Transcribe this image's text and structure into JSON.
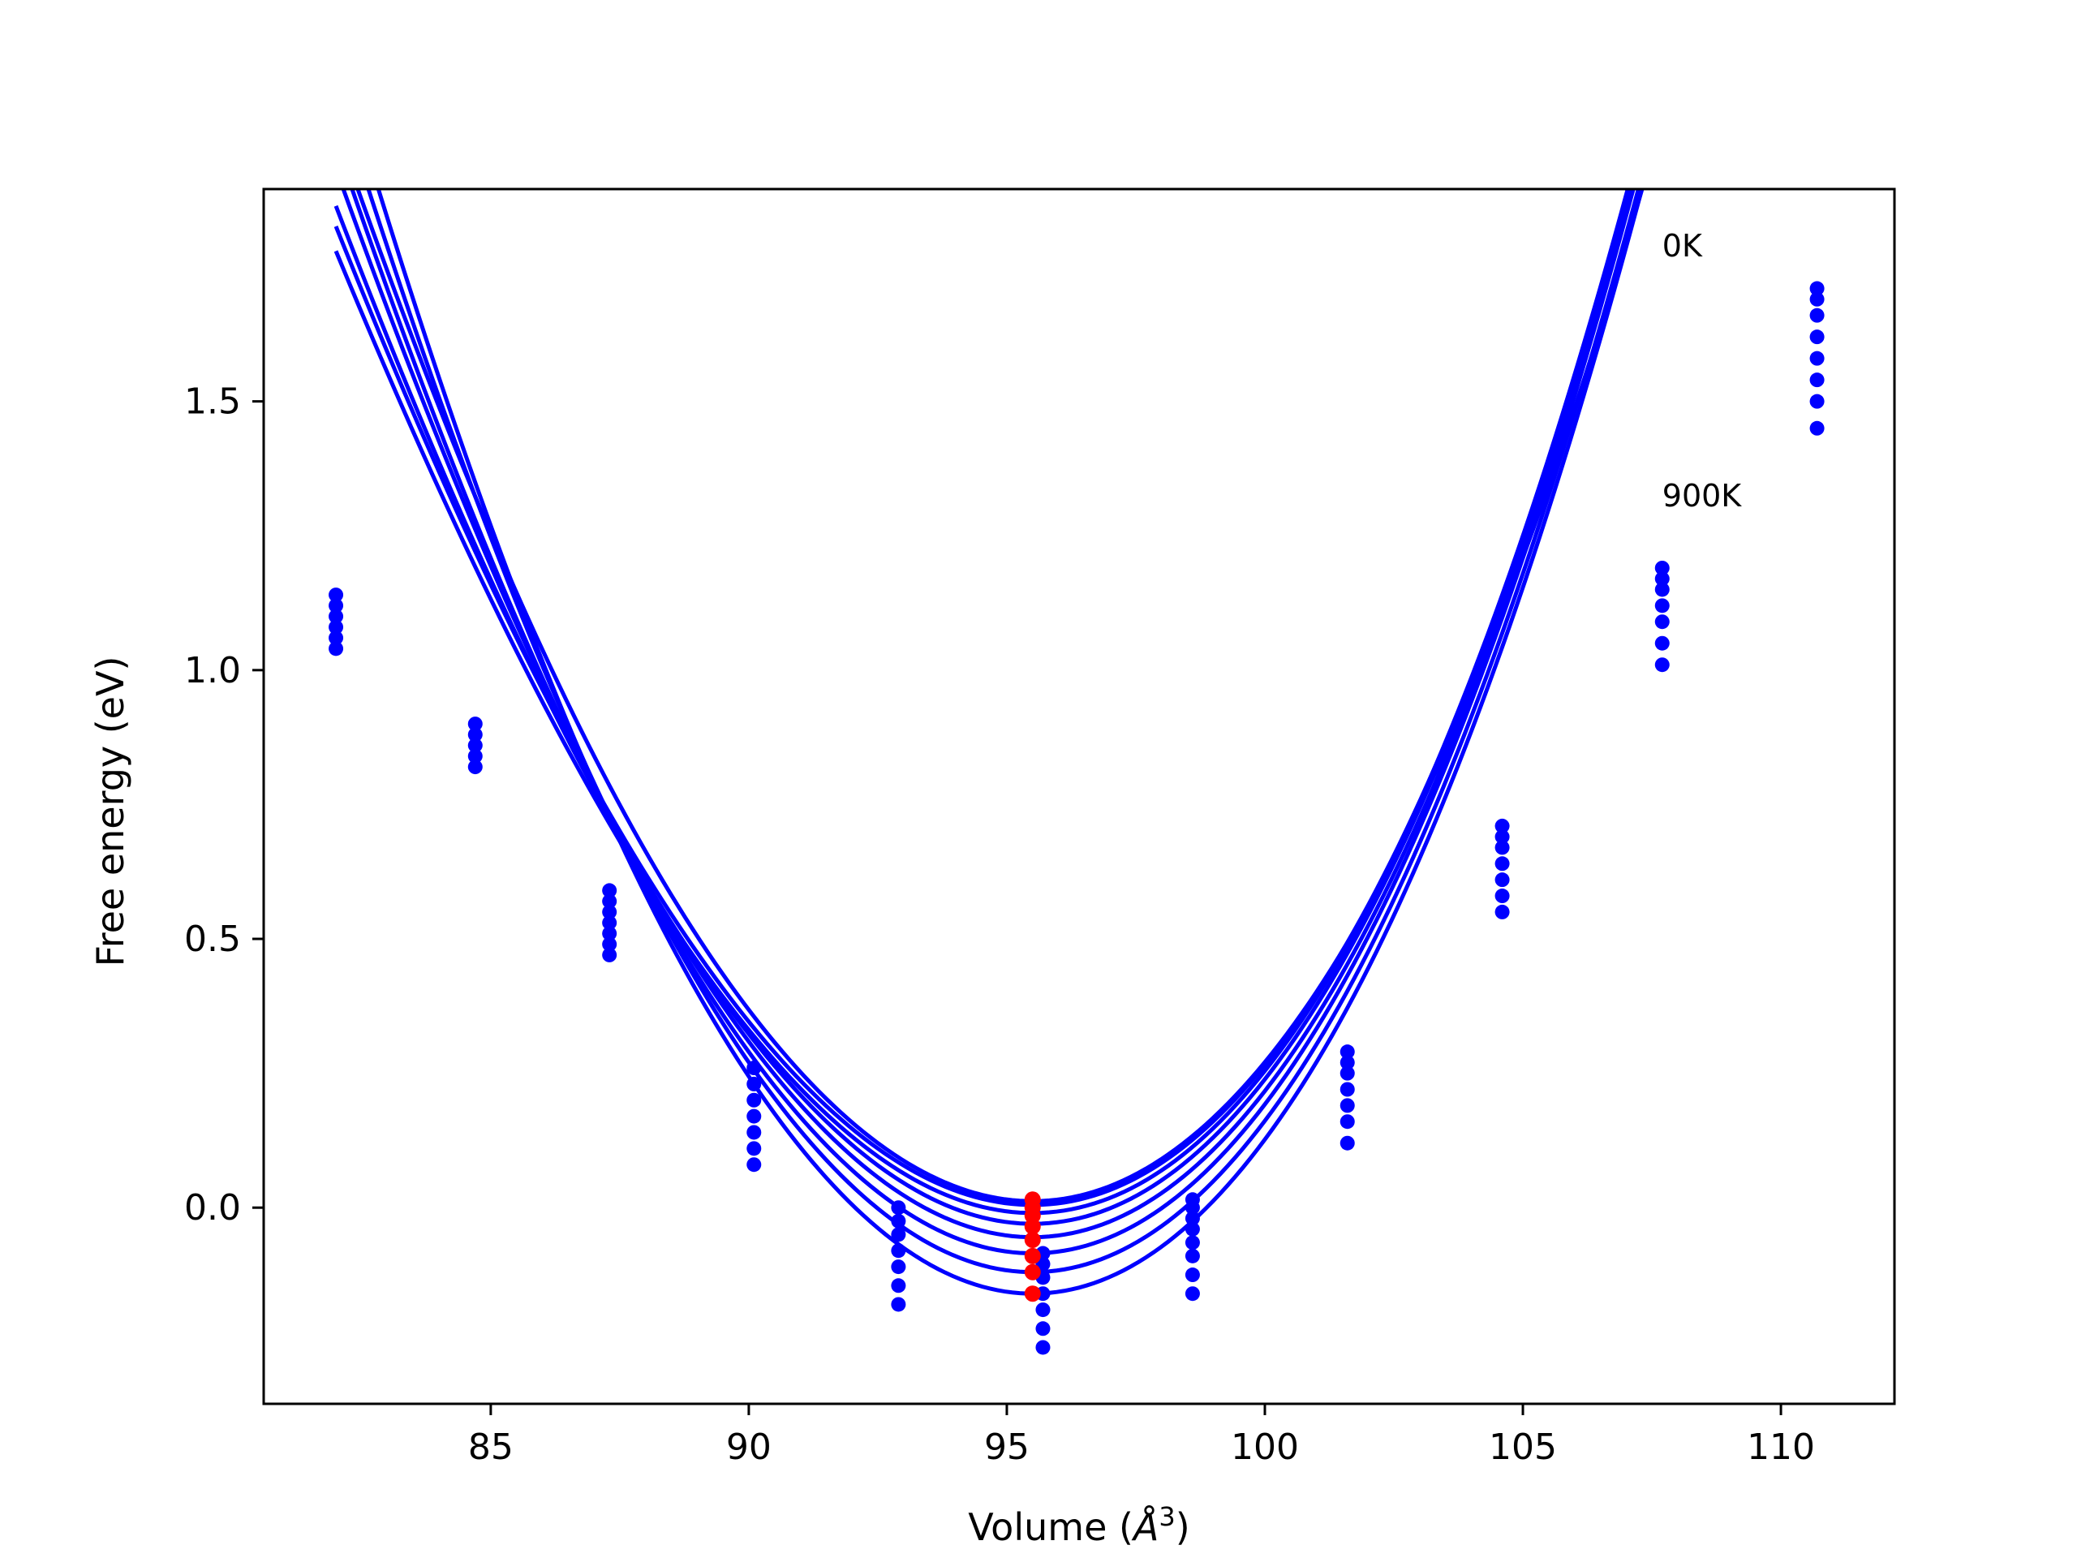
{
  "chart_data": {
    "type": "scatter",
    "title": "",
    "xlabel": "Volume (",
    "xlabel_symbol": "Å",
    "xlabel_power": "3",
    "xlabel_close": ")",
    "ylabel": "Free energy (eV)",
    "xlim": [
      80.6,
      112.2
    ],
    "ylim": [
      -0.365,
      1.895
    ],
    "xticks": [
      {
        "value": 85,
        "label": "85"
      },
      {
        "value": 90,
        "label": "90"
      },
      {
        "value": 95,
        "label": "95"
      },
      {
        "value": 100,
        "label": "100"
      },
      {
        "value": 105,
        "label": "105"
      },
      {
        "value": 110,
        "label": "110"
      }
    ],
    "yticks": [
      {
        "value": 0.0,
        "label": "0.0"
      },
      {
        "value": 0.5,
        "label": "0.5"
      },
      {
        "value": 1.0,
        "label": "1.0"
      },
      {
        "value": 1.5,
        "label": "1.5"
      }
    ],
    "grid": false,
    "legend": "none",
    "annotations": [
      {
        "text": "0K",
        "x": 107.7,
        "y": 1.77
      },
      {
        "text": "900K",
        "x": 107.7,
        "y": 1.305
      }
    ],
    "colors": {
      "series": "#0000ff",
      "minimum": "#ff0000",
      "axes": "#000000"
    },
    "fit_curves": [
      {
        "v0": 95.5,
        "e0": 0.012,
        "a": 0.01232,
        "b": 0.0001,
        "vmin": 82.0,
        "vmax": 110.8
      },
      {
        "v0": 95.5,
        "e0": 0.005,
        "a": 0.01215,
        "b": 0.00016,
        "vmin": 82.0,
        "vmax": 110.8
      },
      {
        "v0": 95.5,
        "e0": -0.01,
        "a": 0.01225,
        "b": 0.00018,
        "vmin": 82.0,
        "vmax": 110.8
      },
      {
        "v0": 95.5,
        "e0": -0.03,
        "a": 0.01255,
        "b": 0.00016,
        "vmin": 82.0,
        "vmax": 110.8
      },
      {
        "v0": 95.5,
        "e0": -0.055,
        "a": 0.0128,
        "b": 0.00014,
        "vmin": 82.0,
        "vmax": 110.8
      },
      {
        "v0": 95.5,
        "e0": -0.085,
        "a": 0.0131,
        "b": 0.00013,
        "vmin": 82.0,
        "vmax": 110.8
      },
      {
        "v0": 95.5,
        "e0": -0.12,
        "a": 0.01345,
        "b": 0.0001,
        "vmin": 82.0,
        "vmax": 110.8
      },
      {
        "v0": 95.5,
        "e0": -0.16,
        "a": 0.0138,
        "b": 8e-05,
        "vmin": 82.0,
        "vmax": 110.8
      }
    ],
    "points": [
      {
        "x": 82.0,
        "y": 1.04
      },
      {
        "x": 82.0,
        "y": 1.06
      },
      {
        "x": 82.0,
        "y": 1.08
      },
      {
        "x": 82.0,
        "y": 1.1
      },
      {
        "x": 82.0,
        "y": 1.12
      },
      {
        "x": 82.0,
        "y": 1.14
      },
      {
        "x": 84.7,
        "y": 0.82
      },
      {
        "x": 84.7,
        "y": 0.84
      },
      {
        "x": 84.7,
        "y": 0.86
      },
      {
        "x": 84.7,
        "y": 0.88
      },
      {
        "x": 84.7,
        "y": 0.9
      },
      {
        "x": 87.3,
        "y": 0.47
      },
      {
        "x": 87.3,
        "y": 0.49
      },
      {
        "x": 87.3,
        "y": 0.51
      },
      {
        "x": 87.3,
        "y": 0.53
      },
      {
        "x": 87.3,
        "y": 0.55
      },
      {
        "x": 87.3,
        "y": 0.57
      },
      {
        "x": 87.3,
        "y": 0.59
      },
      {
        "x": 90.1,
        "y": 0.08
      },
      {
        "x": 90.1,
        "y": 0.11
      },
      {
        "x": 90.1,
        "y": 0.14
      },
      {
        "x": 90.1,
        "y": 0.17
      },
      {
        "x": 90.1,
        "y": 0.2
      },
      {
        "x": 90.1,
        "y": 0.23
      },
      {
        "x": 90.1,
        "y": 0.26
      },
      {
        "x": 92.9,
        "y": -0.18
      },
      {
        "x": 92.9,
        "y": -0.145
      },
      {
        "x": 92.9,
        "y": -0.11
      },
      {
        "x": 92.9,
        "y": -0.08
      },
      {
        "x": 92.9,
        "y": -0.05
      },
      {
        "x": 92.9,
        "y": -0.025
      },
      {
        "x": 92.9,
        "y": 0.0
      },
      {
        "x": 95.7,
        "y": -0.26
      },
      {
        "x": 95.7,
        "y": -0.225
      },
      {
        "x": 95.7,
        "y": -0.19
      },
      {
        "x": 95.7,
        "y": -0.16
      },
      {
        "x": 95.7,
        "y": -0.13
      },
      {
        "x": 95.7,
        "y": -0.105
      },
      {
        "x": 95.7,
        "y": -0.085
      },
      {
        "x": 98.6,
        "y": -0.16
      },
      {
        "x": 98.6,
        "y": -0.125
      },
      {
        "x": 98.6,
        "y": -0.09
      },
      {
        "x": 98.6,
        "y": -0.065
      },
      {
        "x": 98.6,
        "y": -0.04
      },
      {
        "x": 98.6,
        "y": -0.02
      },
      {
        "x": 98.6,
        "y": 0.0
      },
      {
        "x": 98.6,
        "y": 0.015
      },
      {
        "x": 101.6,
        "y": 0.12
      },
      {
        "x": 101.6,
        "y": 0.16
      },
      {
        "x": 101.6,
        "y": 0.19
      },
      {
        "x": 101.6,
        "y": 0.22
      },
      {
        "x": 101.6,
        "y": 0.25
      },
      {
        "x": 101.6,
        "y": 0.27
      },
      {
        "x": 101.6,
        "y": 0.29
      },
      {
        "x": 104.6,
        "y": 0.55
      },
      {
        "x": 104.6,
        "y": 0.58
      },
      {
        "x": 104.6,
        "y": 0.61
      },
      {
        "x": 104.6,
        "y": 0.64
      },
      {
        "x": 104.6,
        "y": 0.67
      },
      {
        "x": 104.6,
        "y": 0.69
      },
      {
        "x": 104.6,
        "y": 0.71
      },
      {
        "x": 107.7,
        "y": 1.01
      },
      {
        "x": 107.7,
        "y": 1.05
      },
      {
        "x": 107.7,
        "y": 1.09
      },
      {
        "x": 107.7,
        "y": 1.12
      },
      {
        "x": 107.7,
        "y": 1.15
      },
      {
        "x": 107.7,
        "y": 1.17
      },
      {
        "x": 107.7,
        "y": 1.19
      },
      {
        "x": 110.7,
        "y": 1.45
      },
      {
        "x": 110.7,
        "y": 1.5
      },
      {
        "x": 110.7,
        "y": 1.54
      },
      {
        "x": 110.7,
        "y": 1.58
      },
      {
        "x": 110.7,
        "y": 1.62
      },
      {
        "x": 110.7,
        "y": 1.66
      },
      {
        "x": 110.7,
        "y": 1.69
      },
      {
        "x": 110.7,
        "y": 1.71
      }
    ],
    "minima": [
      {
        "x": 95.5,
        "y": 0.015
      },
      {
        "x": 95.5,
        "y": 0.0
      },
      {
        "x": 95.5,
        "y": -0.015
      },
      {
        "x": 95.5,
        "y": -0.035
      },
      {
        "x": 95.5,
        "y": -0.06
      },
      {
        "x": 95.5,
        "y": -0.09
      },
      {
        "x": 95.5,
        "y": -0.12
      },
      {
        "x": 95.5,
        "y": -0.16
      }
    ]
  }
}
